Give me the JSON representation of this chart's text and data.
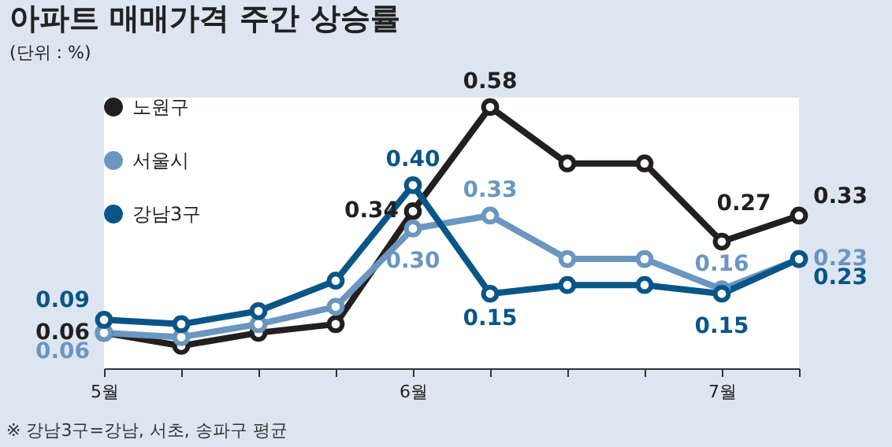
{
  "chart_data": {
    "type": "line",
    "title": "아파트 매매가격 주간 상승률",
    "subtitle": "(단위 : %)",
    "categories": [
      "5월",
      null,
      null,
      null,
      "6월",
      null,
      null,
      null,
      "7월",
      null
    ],
    "series": [
      {
        "name": "노원구",
        "color": "#231f20",
        "values": [
          0.06,
          0.03,
          0.06,
          0.08,
          0.34,
          0.58,
          0.45,
          0.45,
          0.27,
          0.33
        ],
        "value_labels": [
          "0.06",
          null,
          null,
          null,
          "0.34",
          "0.58",
          null,
          null,
          "0.27",
          "0.33"
        ]
      },
      {
        "name": "서울시",
        "color": "#6a96c0",
        "values": [
          0.06,
          0.05,
          0.08,
          0.12,
          0.3,
          0.33,
          0.23,
          0.23,
          0.16,
          0.23
        ],
        "value_labels": [
          "0.06",
          null,
          null,
          null,
          "0.30",
          "0.33",
          null,
          null,
          "0.16",
          "0.23"
        ]
      },
      {
        "name": "강남3구",
        "color": "#0a5587",
        "values": [
          0.09,
          0.08,
          0.11,
          0.18,
          0.4,
          0.15,
          0.17,
          0.17,
          0.15,
          0.23
        ],
        "value_labels": [
          "0.09",
          null,
          null,
          null,
          "0.40",
          "0.15",
          null,
          null,
          "0.15",
          "0.23"
        ]
      }
    ],
    "legend": "top left",
    "marker": "circle",
    "line_style": "solid",
    "grid": false,
    "annotations": [
      "※ 강남3구=강남, 서초, 송파구 평균"
    ]
  }
}
